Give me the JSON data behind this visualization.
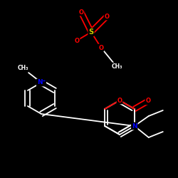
{
  "background_color": "#000000",
  "line_color": "#ffffff",
  "S_color": "#cccc00",
  "O_color": "#ff0000",
  "N_color": "#0000ff",
  "figsize": [
    2.5,
    2.5
  ],
  "dpi": 100,
  "xlim": [
    0,
    250
  ],
  "ylim": [
    0,
    250
  ]
}
